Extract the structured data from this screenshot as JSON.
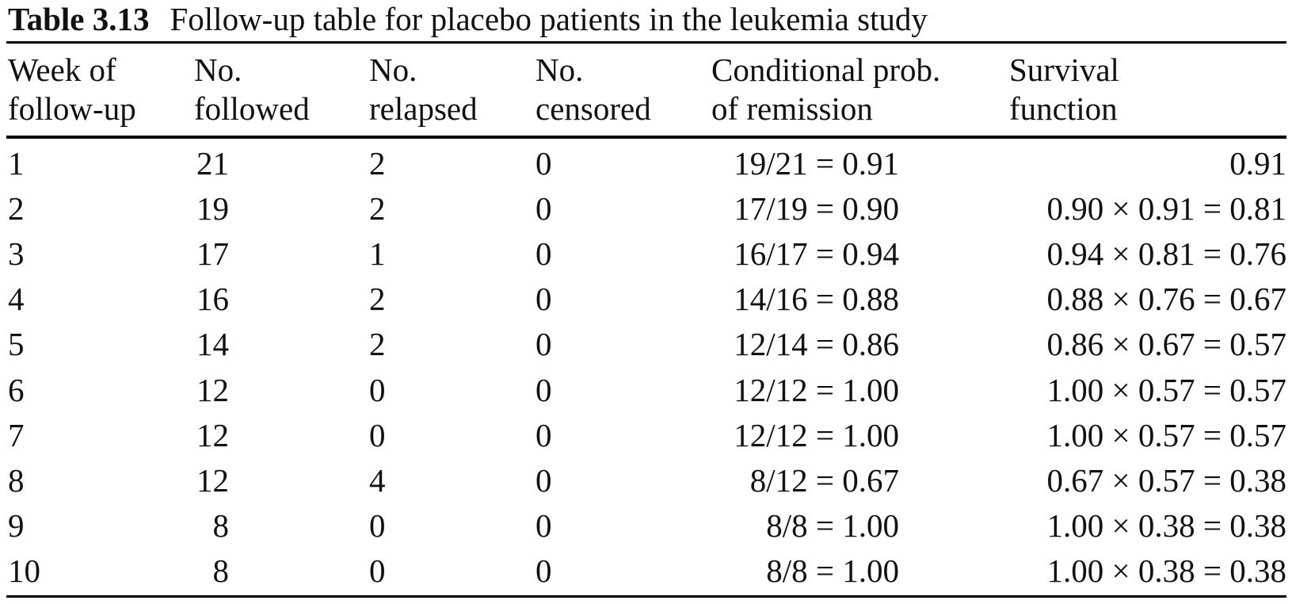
{
  "caption": {
    "label": "Table 3.13",
    "text": "Follow-up table for placebo patients in the leukemia study"
  },
  "headers": [
    {
      "line1": "Week of",
      "line2": "follow-up"
    },
    {
      "line1": "No.",
      "line2": "followed"
    },
    {
      "line1": "No.",
      "line2": "relapsed"
    },
    {
      "line1": "No.",
      "line2": "censored"
    },
    {
      "line1": "Conditional prob.",
      "line2": "of remission"
    },
    {
      "line1": "Survival",
      "line2": "function"
    }
  ],
  "rows": [
    {
      "week": "1",
      "followed": "21",
      "relapsed": "2",
      "censored": "0",
      "cond": "19/21 = 0.91",
      "surv": "0.91"
    },
    {
      "week": "2",
      "followed": "19",
      "relapsed": "2",
      "censored": "0",
      "cond": "17/19 = 0.90",
      "surv": "0.90 × 0.91 = 0.81"
    },
    {
      "week": "3",
      "followed": "17",
      "relapsed": "1",
      "censored": "0",
      "cond": "16/17 = 0.94",
      "surv": "0.94 × 0.81 = 0.76"
    },
    {
      "week": "4",
      "followed": "16",
      "relapsed": "2",
      "censored": "0",
      "cond": "14/16 = 0.88",
      "surv": "0.88 × 0.76 = 0.67"
    },
    {
      "week": "5",
      "followed": "14",
      "relapsed": "2",
      "censored": "0",
      "cond": "12/14 = 0.86",
      "surv": "0.86 × 0.67 = 0.57"
    },
    {
      "week": "6",
      "followed": "12",
      "relapsed": "0",
      "censored": "0",
      "cond": "12/12 = 1.00",
      "surv": "1.00 × 0.57 = 0.57"
    },
    {
      "week": "7",
      "followed": "12",
      "relapsed": "0",
      "censored": "0",
      "cond": "12/12 = 1.00",
      "surv": "1.00 × 0.57 = 0.57"
    },
    {
      "week": "8",
      "followed": "12",
      "relapsed": "4",
      "censored": "0",
      "cond": "8/12 = 0.67",
      "surv": "0.67 × 0.57 = 0.38"
    },
    {
      "week": "9",
      "followed": "8",
      "relapsed": "0",
      "censored": "0",
      "cond": "8/8 = 1.00",
      "surv": "1.00 × 0.38 = 0.38"
    },
    {
      "week": "10",
      "followed": "8",
      "relapsed": "0",
      "censored": "0",
      "cond": "8/8 = 1.00",
      "surv": "1.00 × 0.38 = 0.38"
    }
  ]
}
